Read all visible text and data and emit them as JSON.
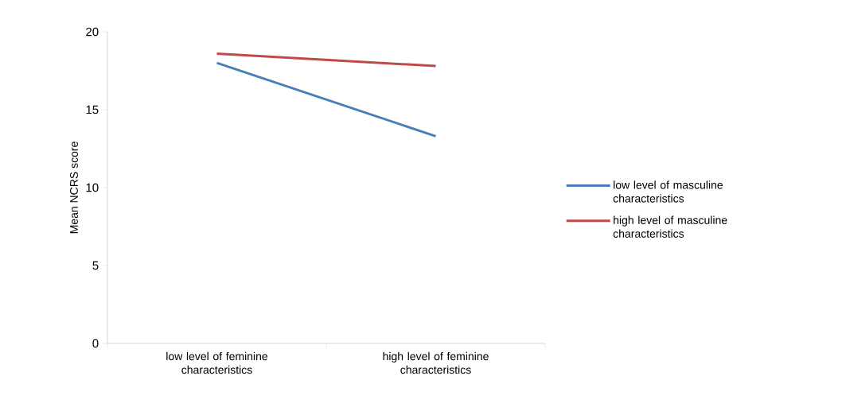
{
  "chart_data": {
    "type": "line",
    "ylabel": "Mean NCRS score",
    "categories": [
      "low level of feminine\ncharacteristics",
      "high level of feminine\ncharacteristics"
    ],
    "series": [
      {
        "name": "low level of masculine\ncharacteristics",
        "color": "#4a7ebb",
        "values": [
          18.0,
          13.3
        ]
      },
      {
        "name": "high level of masculine\ncharacteristics",
        "color": "#be4b48",
        "values": [
          18.6,
          17.8
        ]
      }
    ],
    "ylim": [
      0,
      20
    ],
    "yticks": [
      0,
      5,
      10,
      15,
      20
    ],
    "grid": false,
    "legend": "right",
    "marker": "none",
    "line_style": "solid"
  }
}
